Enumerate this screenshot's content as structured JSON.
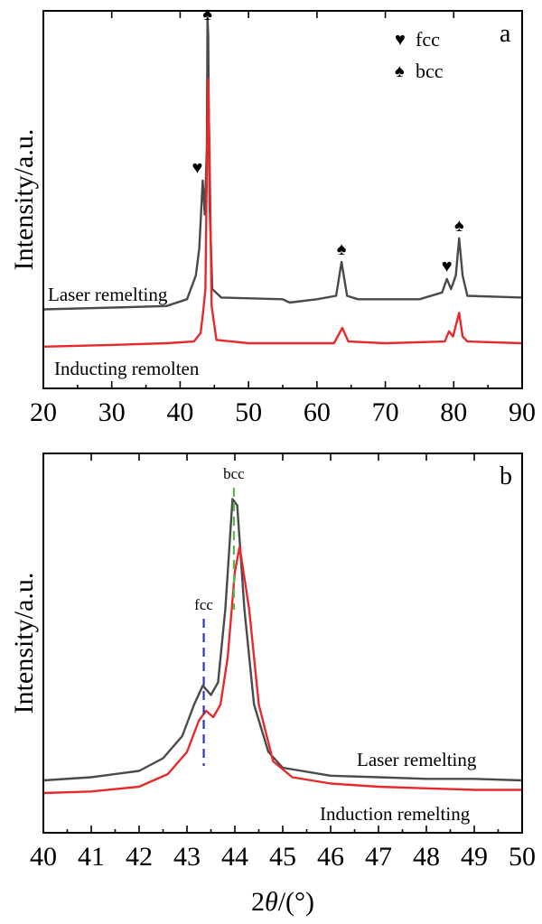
{
  "chart_data": [
    {
      "panel": "a",
      "type": "line",
      "ylabel": "Intensity/a.u.",
      "xlim": [
        20,
        90
      ],
      "x_ticks": [
        "20",
        "30",
        "40",
        "50",
        "60",
        "70",
        "80",
        "90"
      ],
      "series": [
        {
          "name": "Laser remelting",
          "color": "#4a4a4a",
          "points": [
            [
              20,
              0.14
            ],
            [
              30,
              0.145
            ],
            [
              38,
              0.15
            ],
            [
              41,
              0.17
            ],
            [
              42.3,
              0.24
            ],
            [
              42.8,
              0.32
            ],
            [
              43.3,
              0.52
            ],
            [
              43.6,
              0.42
            ],
            [
              43.9,
              0.62
            ],
            [
              44.0,
              1.0
            ],
            [
              44.1,
              0.95
            ],
            [
              44.3,
              0.45
            ],
            [
              44.7,
              0.2
            ],
            [
              46,
              0.175
            ],
            [
              55,
              0.17
            ],
            [
              56,
              0.16
            ],
            [
              60,
              0.17
            ],
            [
              62.8,
              0.18
            ],
            [
              63.6,
              0.28
            ],
            [
              64.4,
              0.18
            ],
            [
              66,
              0.17
            ],
            [
              75,
              0.17
            ],
            [
              78.3,
              0.19
            ],
            [
              79,
              0.23
            ],
            [
              79.6,
              0.2
            ],
            [
              80.3,
              0.24
            ],
            [
              80.8,
              0.35
            ],
            [
              81.3,
              0.24
            ],
            [
              82,
              0.18
            ],
            [
              90,
              0.175
            ]
          ]
        },
        {
          "name": "Inducting remolten",
          "color": "#e8292b",
          "points": [
            [
              20,
              0.03
            ],
            [
              30,
              0.035
            ],
            [
              38,
              0.04
            ],
            [
              42,
              0.045
            ],
            [
              43.0,
              0.07
            ],
            [
              43.4,
              0.14
            ],
            [
              43.7,
              0.2
            ],
            [
              43.9,
              0.55
            ],
            [
              44.1,
              0.82
            ],
            [
              44.3,
              0.6
            ],
            [
              44.6,
              0.15
            ],
            [
              45.3,
              0.05
            ],
            [
              50,
              0.04
            ],
            [
              62.5,
              0.04
            ],
            [
              63.7,
              0.085
            ],
            [
              64.6,
              0.045
            ],
            [
              70,
              0.04
            ],
            [
              78.7,
              0.045
            ],
            [
              79.3,
              0.075
            ],
            [
              79.9,
              0.06
            ],
            [
              80.8,
              0.13
            ],
            [
              81.3,
              0.06
            ],
            [
              82,
              0.045
            ],
            [
              90,
              0.04
            ]
          ]
        }
      ],
      "legend": [
        {
          "symbol": "♥",
          "label": "fcc"
        },
        {
          "symbol": "♠",
          "label": "bcc"
        }
      ],
      "annotations": [
        {
          "symbol": "♥",
          "phase": "fcc",
          "x": 43.3
        },
        {
          "symbol": "♠",
          "phase": "bcc",
          "x": 44.0
        },
        {
          "symbol": "♠",
          "phase": "bcc",
          "x": 63.6
        },
        {
          "symbol": "♥",
          "phase": "fcc",
          "x": 79.0
        },
        {
          "symbol": "♠",
          "phase": "bcc",
          "x": 80.8
        }
      ]
    },
    {
      "panel": "b",
      "type": "line",
      "ylabel": "Intensity/a.u.",
      "xlabel_prefix": "2",
      "xlabel_theta": "θ",
      "xlabel_suffix": "/(°)",
      "xlim": [
        40,
        50
      ],
      "x_ticks": [
        "40",
        "41",
        "42",
        "43",
        "44",
        "45",
        "46",
        "47",
        "48",
        "49",
        "50"
      ],
      "series": [
        {
          "name": "Laser remelting",
          "color": "#4a4a4a",
          "points": [
            [
              40,
              0.06
            ],
            [
              41,
              0.07
            ],
            [
              42,
              0.09
            ],
            [
              42.5,
              0.13
            ],
            [
              42.9,
              0.2
            ],
            [
              43.15,
              0.3
            ],
            [
              43.33,
              0.36
            ],
            [
              43.5,
              0.33
            ],
            [
              43.65,
              0.37
            ],
            [
              43.8,
              0.6
            ],
            [
              43.95,
              0.95
            ],
            [
              44.05,
              0.93
            ],
            [
              44.2,
              0.6
            ],
            [
              44.4,
              0.3
            ],
            [
              44.7,
              0.15
            ],
            [
              45,
              0.1
            ],
            [
              46,
              0.075
            ],
            [
              47,
              0.07
            ],
            [
              48,
              0.065
            ],
            [
              49,
              0.065
            ],
            [
              50,
              0.06
            ]
          ]
        },
        {
          "name": "Induction remelting",
          "color": "#e8292b",
          "points": [
            [
              40,
              0.02
            ],
            [
              41,
              0.025
            ],
            [
              42,
              0.04
            ],
            [
              42.6,
              0.08
            ],
            [
              43.0,
              0.15
            ],
            [
              43.25,
              0.25
            ],
            [
              43.4,
              0.28
            ],
            [
              43.55,
              0.26
            ],
            [
              43.7,
              0.3
            ],
            [
              43.85,
              0.45
            ],
            [
              44.0,
              0.72
            ],
            [
              44.1,
              0.8
            ],
            [
              44.3,
              0.6
            ],
            [
              44.5,
              0.3
            ],
            [
              44.8,
              0.12
            ],
            [
              45.2,
              0.07
            ],
            [
              46,
              0.05
            ],
            [
              47,
              0.04
            ],
            [
              48,
              0.035
            ],
            [
              49,
              0.03
            ],
            [
              50,
              0.03
            ]
          ]
        }
      ],
      "reference_lines": [
        {
          "label": "fcc",
          "x": 43.35,
          "color": "#2b3bb0"
        },
        {
          "label": "bcc",
          "x": 43.98,
          "color": "#5ab54b"
        }
      ]
    }
  ]
}
